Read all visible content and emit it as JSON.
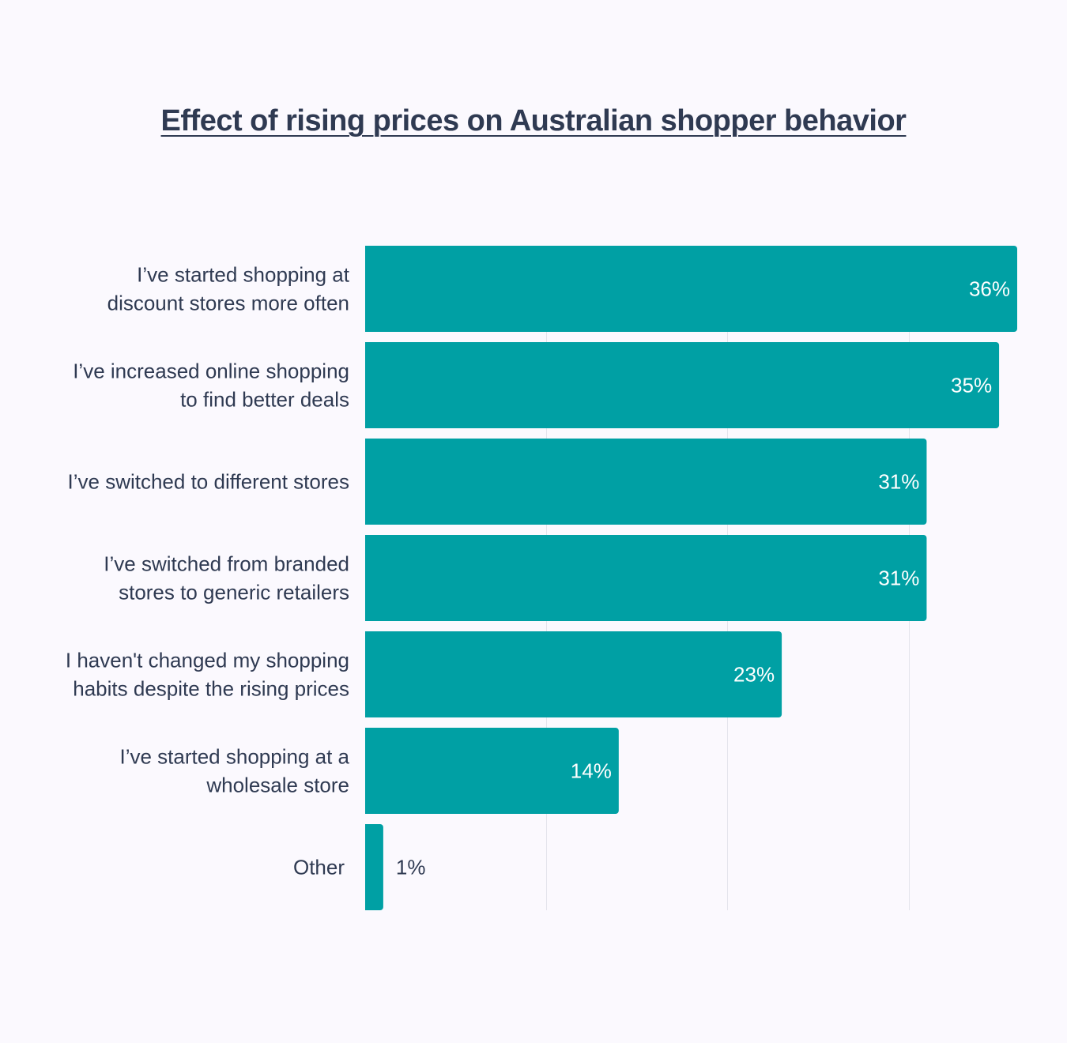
{
  "chart_data": {
    "type": "bar",
    "orientation": "horizontal",
    "title": "Effect of rising prices on Australian shopper behavior",
    "categories": [
      [
        "I’ve started shopping at",
        "discount stores more often"
      ],
      [
        "I’ve increased online shopping",
        "to find better deals"
      ],
      [
        "I’ve switched to different stores"
      ],
      [
        "I’ve switched from branded",
        "stores to generic retailers"
      ],
      [
        "I haven't changed my shopping",
        "habits despite the rising prices"
      ],
      [
        "I’ve started shopping at a",
        "wholesale store"
      ],
      [
        "Other"
      ]
    ],
    "values": [
      36,
      35,
      31,
      31,
      23,
      14,
      1
    ],
    "value_labels": [
      "36%",
      "35%",
      "31%",
      "31%",
      "23%",
      "14%",
      "1%"
    ],
    "xlim": [
      0,
      36
    ],
    "gridlines_at": [
      10,
      20,
      30
    ],
    "grid": true,
    "bar_color": "#00a0a4",
    "xlabel": "",
    "ylabel": ""
  }
}
